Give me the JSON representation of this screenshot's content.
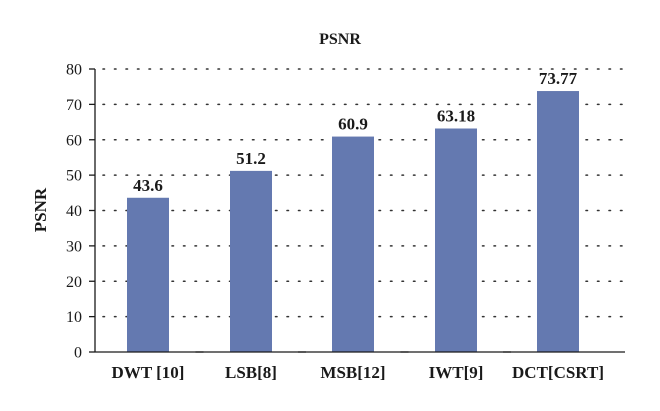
{
  "chart_data": {
    "type": "bar",
    "title": "PSNR",
    "xlabel": "",
    "ylabel": "PSNR",
    "categories": [
      "DWT [10]",
      "LSB[8]",
      "MSB[12]",
      "IWT[9]",
      "DCT[CSRT]"
    ],
    "values": [
      43.6,
      51.2,
      60.9,
      63.18,
      73.77
    ],
    "data_labels": [
      "43.6",
      "51.2",
      "60.9",
      "63.18",
      "73.77"
    ],
    "ylim": [
      0,
      80
    ],
    "yticks": [
      0,
      10,
      20,
      30,
      40,
      50,
      60,
      70,
      80
    ],
    "grid": true,
    "legend": "none",
    "bar_color": "#6479b0"
  }
}
